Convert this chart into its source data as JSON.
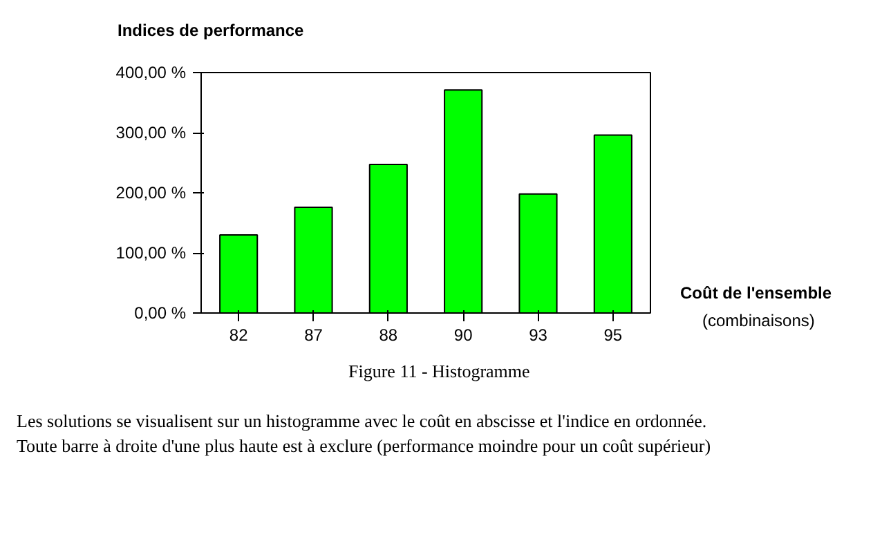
{
  "chart_data": {
    "type": "bar",
    "title": "Indices de performance",
    "xlabel": "Coût de l'ensemble\n(combinaisons)",
    "categories": [
      "82",
      "87",
      "88",
      "90",
      "93",
      "95"
    ],
    "values": [
      130,
      176,
      247,
      371,
      198,
      296
    ],
    "color": "#00ff00",
    "ylim": [
      0,
      400
    ],
    "yticks": [
      {
        "value": 0,
        "label": "0,00 %"
      },
      {
        "value": 100,
        "label": "100,00 %"
      },
      {
        "value": 200,
        "label": "200,00 %"
      },
      {
        "value": 300,
        "label": "300,00 %"
      },
      {
        "value": 400,
        "label": "400,00 %"
      }
    ],
    "grid": false,
    "annotations": [
      "Figure  11  -  Histogramme",
      "Les solutions se visualisent sur un histogramme avec le coût en abscisse et l'indice en ordonnée.",
      "Toute barre à droite d'une plus haute est à exclure (performance moindre pour un coût supérieur)"
    ]
  }
}
